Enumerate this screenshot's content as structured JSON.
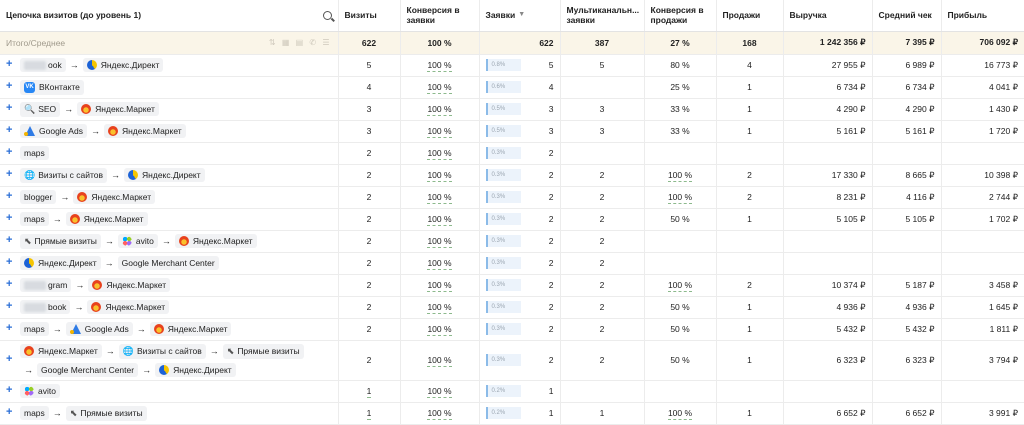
{
  "columns": {
    "chain": "Цепочка визитов (до уровень 1)",
    "visits": "Визиты",
    "conv_leads": "Конверсия в заявки",
    "leads": "Заявки",
    "leads_sort_icon": "▼",
    "multichannel": "Мультиканальн... заявки",
    "conv_sales": "Конверсия в продажи",
    "sales": "Продажи",
    "revenue": "Выручка",
    "avg_check": "Средний чек",
    "profit": "Прибыль"
  },
  "summary": {
    "label": "Итого/Среднее",
    "tools": "⇅ ▦ ▤ ✆ ☰",
    "visits": "622",
    "conv_leads": "100 %",
    "leads": "622",
    "multichannel": "387",
    "conv_sales": "27 %",
    "sales": "168",
    "revenue": "1 242 356 ₽",
    "avg_check": "7 395 ₽",
    "profit": "706 092 ₽"
  },
  "icons": {
    "search": "search-icon",
    "plus": "+",
    "arrow": "→",
    "direct": "yandex-direct-icon",
    "market": "yandex-market-icon",
    "vk": "vk-icon",
    "vk_text": "VK",
    "google_ads": "google-ads-icon",
    "search_glyph": "🔍",
    "globe_glyph": "🌐",
    "cursor_glyph": "⬉",
    "avito": "avito-icon"
  },
  "rows": [
    {
      "chain": [
        {
          "text": "ook",
          "blur": true
        },
        {
          "text": "Яндекс.Директ",
          "icon": "direct"
        }
      ],
      "visits": "5",
      "conv_leads": "100 %",
      "bar_pct": "0.8%",
      "leads": "5",
      "multichannel": "5",
      "conv_sales": "80 %",
      "conv_sales_underline": false,
      "sales": "4",
      "revenue": "27 955 ₽",
      "avg_check": "6 989 ₽",
      "profit": "16 773 ₽"
    },
    {
      "chain": [
        {
          "text": "ВКонтакте",
          "icon": "vk"
        }
      ],
      "visits": "4",
      "conv_leads": "100 %",
      "bar_pct": "0.6%",
      "leads": "4",
      "multichannel": "",
      "conv_sales": "25 %",
      "conv_sales_underline": false,
      "sales": "1",
      "revenue": "6 734 ₽",
      "avg_check": "6 734 ₽",
      "profit": "4 041 ₽"
    },
    {
      "chain": [
        {
          "text": "SEO",
          "icon": "search"
        },
        {
          "text": "Яндекс.Маркет",
          "icon": "market"
        }
      ],
      "visits": "3",
      "conv_leads": "100 %",
      "bar_pct": "0.5%",
      "leads": "3",
      "multichannel": "3",
      "conv_sales": "33 %",
      "conv_sales_underline": false,
      "sales": "1",
      "revenue": "4 290 ₽",
      "avg_check": "4 290 ₽",
      "profit": "1 430 ₽"
    },
    {
      "chain": [
        {
          "text": "Google Ads",
          "icon": "gads"
        },
        {
          "text": "Яндекс.Маркет",
          "icon": "market"
        }
      ],
      "visits": "3",
      "conv_leads": "100 %",
      "bar_pct": "0.5%",
      "leads": "3",
      "multichannel": "3",
      "conv_sales": "33 %",
      "conv_sales_underline": false,
      "sales": "1",
      "revenue": "5 161 ₽",
      "avg_check": "5 161 ₽",
      "profit": "1 720 ₽"
    },
    {
      "chain": [
        {
          "text": "maps"
        }
      ],
      "visits": "2",
      "conv_leads": "100 %",
      "bar_pct": "0.3%",
      "leads": "2",
      "multichannel": "",
      "conv_sales": "",
      "conv_sales_underline": false,
      "sales": "",
      "revenue": "",
      "avg_check": "",
      "profit": ""
    },
    {
      "chain": [
        {
          "text": "Визиты с сайтов",
          "icon": "globe"
        },
        {
          "text": "Яндекс.Директ",
          "icon": "direct"
        }
      ],
      "visits": "2",
      "conv_leads": "100 %",
      "bar_pct": "0.3%",
      "leads": "2",
      "multichannel": "2",
      "conv_sales": "100 %",
      "conv_sales_underline": true,
      "sales": "2",
      "revenue": "17 330 ₽",
      "avg_check": "8 665 ₽",
      "profit": "10 398 ₽"
    },
    {
      "chain": [
        {
          "text": "blogger"
        },
        {
          "text": "Яндекс.Маркет",
          "icon": "market"
        }
      ],
      "visits": "2",
      "conv_leads": "100 %",
      "bar_pct": "0.3%",
      "leads": "2",
      "multichannel": "2",
      "conv_sales": "100 %",
      "conv_sales_underline": true,
      "sales": "2",
      "revenue": "8 231 ₽",
      "avg_check": "4 116 ₽",
      "profit": "2 744 ₽"
    },
    {
      "chain": [
        {
          "text": "maps"
        },
        {
          "text": "Яндекс.Маркет",
          "icon": "market"
        }
      ],
      "visits": "2",
      "conv_leads": "100 %",
      "bar_pct": "0.3%",
      "leads": "2",
      "multichannel": "2",
      "conv_sales": "50 %",
      "conv_sales_underline": false,
      "sales": "1",
      "revenue": "5 105 ₽",
      "avg_check": "5 105 ₽",
      "profit": "1 702 ₽"
    },
    {
      "chain": [
        {
          "text": "Прямые визиты",
          "icon": "cursor"
        },
        {
          "text": "avito",
          "icon": "avito"
        },
        {
          "text": "Яндекс.Маркет",
          "icon": "market"
        }
      ],
      "visits": "2",
      "conv_leads": "100 %",
      "bar_pct": "0.3%",
      "leads": "2",
      "multichannel": "2",
      "conv_sales": "",
      "conv_sales_underline": false,
      "sales": "",
      "revenue": "",
      "avg_check": "",
      "profit": ""
    },
    {
      "chain": [
        {
          "text": "Яндекс.Директ",
          "icon": "direct"
        },
        {
          "text": "Google Merchant Center"
        }
      ],
      "visits": "2",
      "conv_leads": "100 %",
      "bar_pct": "0.3%",
      "leads": "2",
      "multichannel": "2",
      "conv_sales": "",
      "conv_sales_underline": false,
      "sales": "",
      "revenue": "",
      "avg_check": "",
      "profit": ""
    },
    {
      "chain": [
        {
          "text": "gram",
          "blur": true
        },
        {
          "text": "Яндекс.Маркет",
          "icon": "market"
        }
      ],
      "visits": "2",
      "conv_leads": "100 %",
      "bar_pct": "0.3%",
      "leads": "2",
      "multichannel": "2",
      "conv_sales": "100 %",
      "conv_sales_underline": true,
      "sales": "2",
      "revenue": "10 374 ₽",
      "avg_check": "5 187 ₽",
      "profit": "3 458 ₽"
    },
    {
      "chain": [
        {
          "text": "book",
          "blur": true
        },
        {
          "text": "Яндекс.Маркет",
          "icon": "market"
        }
      ],
      "visits": "2",
      "conv_leads": "100 %",
      "bar_pct": "0.3%",
      "leads": "2",
      "multichannel": "2",
      "conv_sales": "50 %",
      "conv_sales_underline": false,
      "sales": "1",
      "revenue": "4 936 ₽",
      "avg_check": "4 936 ₽",
      "profit": "1 645 ₽"
    },
    {
      "chain": [
        {
          "text": "maps"
        },
        {
          "text": "Google Ads",
          "icon": "gads"
        },
        {
          "text": "Яндекс.Маркет",
          "icon": "market"
        }
      ],
      "visits": "2",
      "conv_leads": "100 %",
      "bar_pct": "0.3%",
      "leads": "2",
      "multichannel": "2",
      "conv_sales": "50 %",
      "conv_sales_underline": false,
      "sales": "1",
      "revenue": "5 432 ₽",
      "avg_check": "5 432 ₽",
      "profit": "1 811 ₽"
    },
    {
      "tall": true,
      "chain": [
        {
          "text": "Яндекс.Маркет",
          "icon": "market"
        },
        {
          "text": "Визиты с сайтов",
          "icon": "globe"
        },
        {
          "text": "Прямые визиты",
          "icon": "cursor"
        },
        {
          "text": "Google Merchant Center"
        },
        {
          "text": "Яндекс.Директ",
          "icon": "direct"
        }
      ],
      "visits": "2",
      "conv_leads": "100 %",
      "bar_pct": "0.3%",
      "leads": "2",
      "multichannel": "2",
      "conv_sales": "50 %",
      "conv_sales_underline": false,
      "sales": "1",
      "revenue": "6 323 ₽",
      "avg_check": "6 323 ₽",
      "profit": "3 794 ₽"
    },
    {
      "chain": [
        {
          "text": "avito",
          "icon": "avito"
        }
      ],
      "visits": "1",
      "visits_underline": true,
      "conv_leads": "100 %",
      "bar_pct": "0.2%",
      "leads": "1",
      "multichannel": "",
      "conv_sales": "",
      "conv_sales_underline": false,
      "sales": "",
      "revenue": "",
      "avg_check": "",
      "profit": ""
    },
    {
      "chain": [
        {
          "text": "maps"
        },
        {
          "text": "Прямые визиты",
          "icon": "cursor"
        }
      ],
      "visits": "1",
      "visits_underline": true,
      "conv_leads": "100 %",
      "bar_pct": "0.2%",
      "leads": "1",
      "multichannel": "1",
      "conv_sales": "100 %",
      "conv_sales_underline": true,
      "sales": "1",
      "revenue": "6 652 ₽",
      "avg_check": "6 652 ₽",
      "profit": "3 991 ₽"
    }
  ]
}
